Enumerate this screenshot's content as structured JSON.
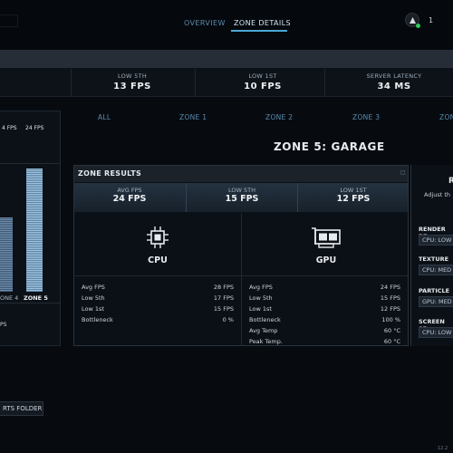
{
  "nav": {
    "tabs": [
      "OVERVIEW",
      "ZONE DETAILS"
    ],
    "active": "ZONE DETAILS",
    "right_number": "1"
  },
  "stats": [
    {
      "label": "LOW 5TH",
      "value": "13 FPS"
    },
    {
      "label": "LOW 1ST",
      "value": "10 FPS"
    },
    {
      "label": "SERVER LATENCY",
      "value": "34 MS"
    }
  ],
  "left_panel": {
    "headers": [
      "4 FPS",
      "24 FPS"
    ],
    "zone_labels": [
      "ONE 4",
      "ZONE 5"
    ],
    "footer_text": "PS"
  },
  "zone_tabs": [
    "ALL",
    "ZONE 1",
    "ZONE 2",
    "ZONE 3",
    "ZON"
  ],
  "zone_title": "ZONE 5: GARAGE",
  "results": {
    "title": "ZONE RESULTS",
    "summary": [
      {
        "label": "AVG FPS",
        "value": "24 FPS"
      },
      {
        "label": "LOW 5TH",
        "value": "15 FPS"
      },
      {
        "label": "LOW 1ST",
        "value": "12 FPS"
      }
    ],
    "cpu": {
      "title": "CPU",
      "rows": [
        {
          "label": "Avg FPS",
          "value": "28 FPS"
        },
        {
          "label": "Low 5th",
          "value": "17 FPS"
        },
        {
          "label": "Low 1st",
          "value": "15 FPS"
        },
        {
          "label": "Bottleneck",
          "value": "0 %"
        }
      ]
    },
    "gpu": {
      "title": "GPU",
      "rows": [
        {
          "label": "Avg FPS",
          "value": "24 FPS"
        },
        {
          "label": "Low 5th",
          "value": "15 FPS"
        },
        {
          "label": "Low 1st",
          "value": "12 FPS"
        },
        {
          "label": "Bottleneck",
          "value": "100 %"
        },
        {
          "label": "Avg Temp",
          "value": "60 °C"
        },
        {
          "label": "Peak Temp.",
          "value": "60 °C"
        }
      ]
    }
  },
  "right_panel": {
    "heading": "R",
    "hint": "Adjust th",
    "settings": [
      {
        "label": "RENDER RE",
        "value": "CPU: LOW"
      },
      {
        "label": "TEXTURE",
        "value": "CPU: MED"
      },
      {
        "label": "PARTICLE",
        "value": "GPU: MED"
      },
      {
        "label": "SCREEN SP",
        "value": "CPU: LOW"
      }
    ]
  },
  "bottom": {
    "folder_button": "RTS FOLDER",
    "version": "12.2"
  }
}
